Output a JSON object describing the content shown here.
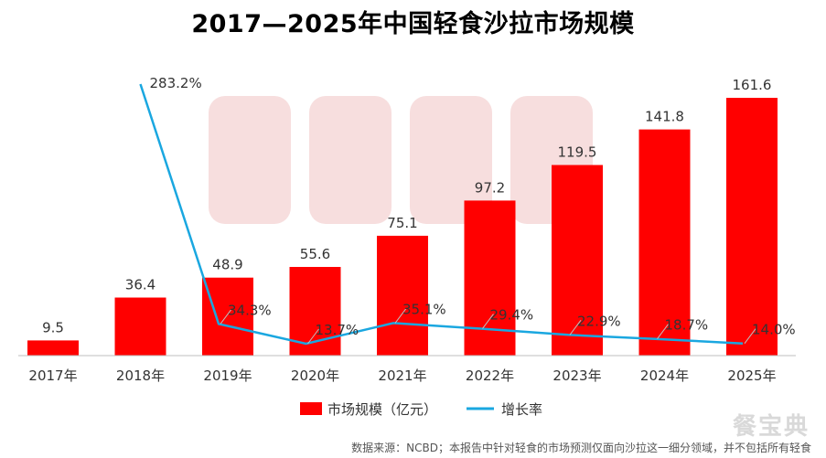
{
  "title": "2017—2025年中国轻食沙拉市场规模",
  "source_note": "数据来源：NCBD；本报告中针对轻食的市场预测仅面向沙拉这一细分领域，并不包括所有轻食",
  "watermark_logo": "餐宝典",
  "colors": {
    "bar": "#ff0000",
    "line": "#1aa7e0",
    "watermark": "#f7dede"
  },
  "chart_data": {
    "type": "bar",
    "title": "2017—2025年中国轻食沙拉市场规模",
    "categories": [
      "2017年",
      "2018年",
      "2019年",
      "2020年",
      "2021年",
      "2022年",
      "2023年",
      "2024年",
      "2025年"
    ],
    "series": [
      {
        "name": "市场规模（亿元）",
        "type": "bar",
        "values": [
          9.5,
          36.4,
          48.9,
          55.6,
          75.1,
          97.2,
          119.5,
          141.8,
          161.6
        ],
        "labels": [
          "9.5",
          "36.4",
          "48.9",
          "55.6",
          "75.1",
          "97.2",
          "119.5",
          "141.8",
          "161.6"
        ]
      },
      {
        "name": "增长率",
        "type": "line",
        "values": [
          null,
          283.2,
          34.3,
          13.7,
          35.1,
          29.4,
          22.9,
          18.7,
          14.0
        ],
        "labels": [
          "",
          "283.2%",
          "34.3%",
          "13.7%",
          "35.1%",
          "29.4%",
          "22.9%",
          "18.7%",
          "14.0%"
        ]
      }
    ],
    "legend_position": "bottom",
    "grid": false
  }
}
